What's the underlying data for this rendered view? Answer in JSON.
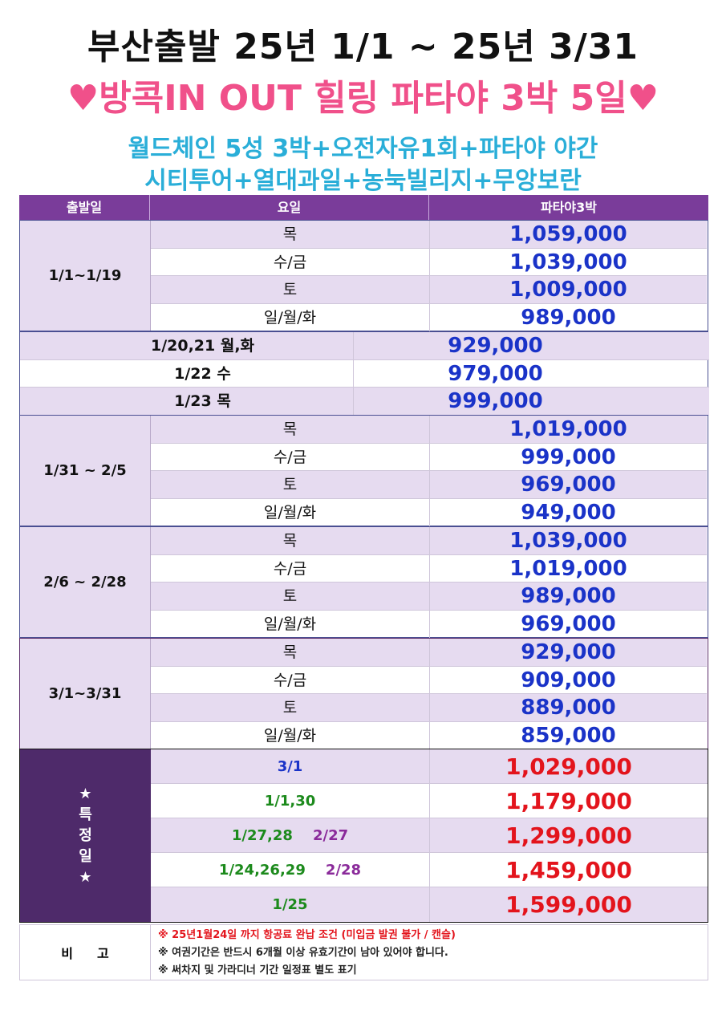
{
  "title": "부산출발 25년 1/1 ~ 25년 3/31",
  "subtitle": "♥방콕IN OUT 힐링 파타야 3박 5일♥",
  "description_line1": "월드체인 5성 3박+오전자유1회+파타야 야간",
  "description_line2": "시티투어+열대과일+농눅빌리지+무앙보란",
  "header": {
    "col1": "출발일",
    "col2": "요일",
    "col3": "파타야3박"
  },
  "groups": [
    {
      "label": "1/1~1/19",
      "rows": [
        {
          "day": "목",
          "price": "1,059,000"
        },
        {
          "day": "수/금",
          "price": "1,039,000"
        },
        {
          "day": "토",
          "price": "1,009,000"
        },
        {
          "day": "일/월/화",
          "price": "989,000"
        }
      ]
    },
    {
      "label": "1/31 ~ 2/5",
      "rows": [
        {
          "day": "목",
          "price": "1,019,000"
        },
        {
          "day": "수/금",
          "price": "999,000"
        },
        {
          "day": "토",
          "price": "969,000"
        },
        {
          "day": "일/월/화",
          "price": "949,000"
        }
      ]
    },
    {
      "label": "2/6 ~ 2/28",
      "rows": [
        {
          "day": "목",
          "price": "1,039,000"
        },
        {
          "day": "수/금",
          "price": "1,019,000"
        },
        {
          "day": "토",
          "price": "989,000"
        },
        {
          "day": "일/월/화",
          "price": "969,000"
        }
      ]
    },
    {
      "label": "3/1~3/31",
      "rows": [
        {
          "day": "목",
          "price": "929,000"
        },
        {
          "day": "수/금",
          "price": "909,000"
        },
        {
          "day": "토",
          "price": "889,000"
        },
        {
          "day": "일/월/화",
          "price": "859,000"
        }
      ]
    }
  ],
  "full_rows": [
    {
      "date": "1/20,21 월,화",
      "price": "929,000"
    },
    {
      "date": "1/22 수",
      "price": "979,000"
    },
    {
      "date": "1/23 목",
      "price": "999,000"
    }
  ],
  "special": {
    "label_lines": [
      "★",
      "특",
      "정",
      "일",
      "★"
    ],
    "rows": [
      {
        "date_a": "3/1",
        "date_b": "",
        "price": "1,029,000"
      },
      {
        "date_a": "1/1,30",
        "date_b": "",
        "price": "1,179,000"
      },
      {
        "date_a": "1/27,28",
        "date_b": "2/27",
        "price": "1,299,000"
      },
      {
        "date_a": "1/24,26,29",
        "date_b": "2/28",
        "price": "1,459,000"
      },
      {
        "date_a": "1/25",
        "date_b": "",
        "price": "1,599,000"
      }
    ]
  },
  "notes": {
    "label": "비고",
    "lines": [
      "※ 25년1월24일 까지 항공료 완납 조건 (미입금 발권 불가 / 캔슬)",
      "※ 여권기간은 반드시 6개월 이상 유효기간이 남아 있어야 합니다.",
      "※ 써차지 및 가라디너 기간 일정표 별도 표기"
    ]
  },
  "colors": {
    "header": "#7a3c9a",
    "row_alt": "#e6dbf0",
    "price_blue": "#1a33c8",
    "price_red": "#e3141c",
    "special_label": "#4e2a6a",
    "title_pink": "#f0508a",
    "subtitle_blue": "#2aaed8"
  }
}
